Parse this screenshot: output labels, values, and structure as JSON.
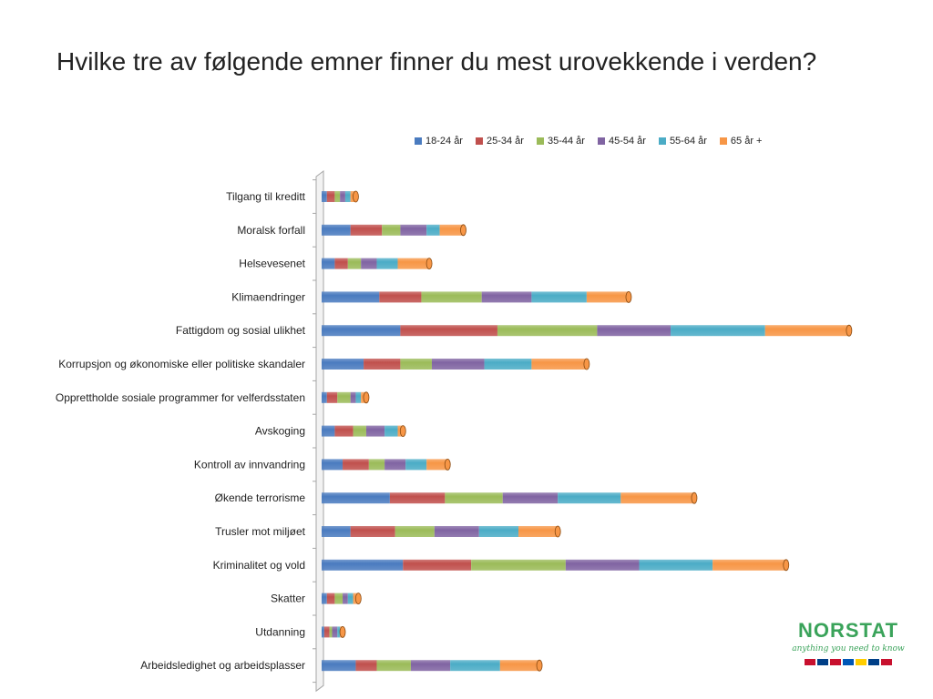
{
  "title": "Hvilke tre av følgende emner finner du mest urovekkende i verden?",
  "logo": {
    "text": "NORSTAT",
    "tagline": "anything you need to know"
  },
  "colors": {
    "series": [
      "#4a7bbf",
      "#c0504d",
      "#9bbb59",
      "#8064a2",
      "#4bacc6",
      "#f79646"
    ]
  },
  "chart_data": {
    "type": "bar",
    "orientation": "horizontal",
    "stacked": true,
    "style": "3d-cylinder",
    "legend_position": "top",
    "grid": false,
    "categories": [
      "Tilgang til kreditt",
      "Moralsk forfall",
      "Helsevesenet",
      "Klimaendringer",
      "Fattigdom og sosial ulikhet",
      "Korrupsjon og økonomiske eller politiske skandaler",
      "Opprettholde sosiale programmer for velferdsstaten",
      "Avskoging",
      "Kontroll av innvandring",
      "Økende terrorisme",
      "Trusler mot miljøet",
      "Kriminalitet og vold",
      "Skatter",
      "Utdanning",
      "Arbeidsledighet og arbeidsplasser"
    ],
    "series": [
      {
        "name": "18-24 år",
        "values": [
          2,
          11,
          5,
          22,
          30,
          16,
          2,
          5,
          8,
          26,
          11,
          31,
          2,
          1,
          13
        ]
      },
      {
        "name": "25-34 år",
        "values": [
          3,
          12,
          5,
          16,
          37,
          14,
          4,
          7,
          10,
          21,
          17,
          26,
          3,
          2,
          8
        ]
      },
      {
        "name": "35-44 år",
        "values": [
          2,
          7,
          5,
          23,
          38,
          12,
          5,
          5,
          6,
          22,
          15,
          36,
          3,
          1,
          13
        ]
      },
      {
        "name": "45-54 år",
        "values": [
          2,
          10,
          6,
          19,
          28,
          20,
          2,
          7,
          8,
          21,
          17,
          28,
          2,
          2,
          15
        ]
      },
      {
        "name": "55-64 år",
        "values": [
          2,
          5,
          8,
          21,
          36,
          18,
          2,
          5,
          8,
          24,
          15,
          28,
          2,
          1,
          19
        ]
      },
      {
        "name": "65 år +",
        "values": [
          2,
          9,
          12,
          16,
          32,
          21,
          2,
          2,
          8,
          28,
          15,
          28,
          2,
          1,
          15
        ]
      }
    ],
    "xlim": [
      0,
      200
    ]
  }
}
